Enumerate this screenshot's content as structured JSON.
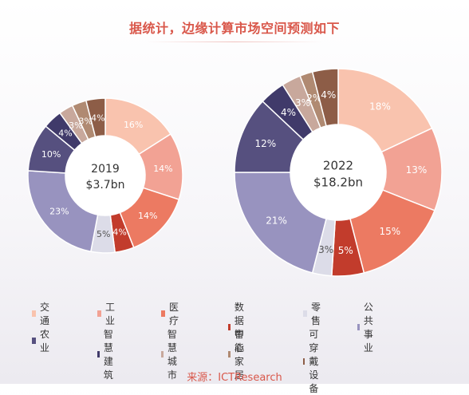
{
  "title": "据统计，边缘计算市场空间预测如下",
  "source": "来源：ICTResearch",
  "legend": [
    {
      "label": "交通",
      "color": "#f9c3ae"
    },
    {
      "label": "工业",
      "color": "#f2a294"
    },
    {
      "label": "医疗",
      "color": "#ec7a62"
    },
    {
      "label": "数据中心",
      "color": "#c23c2c"
    },
    {
      "label": "零售",
      "color": "#dcdce8"
    },
    {
      "label": "公共事业",
      "color": "#9893bf"
    },
    {
      "label": "农业",
      "color": "#56507f"
    },
    {
      "label": "智慧建筑",
      "color": "#403a6a"
    },
    {
      "label": "智慧城市",
      "color": "#c8a89c"
    },
    {
      "label": "智能家居",
      "color": "#b08a72"
    },
    {
      "label": "可穿戴设备",
      "color": "#8d5d47"
    }
  ],
  "chart_data": [
    {
      "type": "pie",
      "center_year": "2019",
      "center_value": "$3.7bn",
      "categories": [
        "交通",
        "工业",
        "医疗",
        "数据中心",
        "零售",
        "公共事业",
        "农业",
        "智慧建筑",
        "智慧城市",
        "智能家居",
        "可穿戴设备"
      ],
      "values": [
        16,
        14,
        14,
        4,
        5,
        23,
        10,
        4,
        3,
        3,
        4
      ],
      "labels": [
        "16%",
        "14%",
        "14%",
        "4%",
        "5%",
        "23%",
        "10%",
        "4%",
        "3%",
        "3%",
        "4%"
      ]
    },
    {
      "type": "pie",
      "center_year": "2022",
      "center_value": "$18.2bn",
      "categories": [
        "交通",
        "工业",
        "医疗",
        "数据中心",
        "零售",
        "公共事业",
        "农业",
        "智慧建筑",
        "智慧城市",
        "智能家居",
        "可穿戴设备"
      ],
      "values": [
        18,
        13,
        15,
        5,
        3,
        21,
        12,
        4,
        3,
        2,
        4
      ],
      "labels": [
        "18%",
        "13%",
        "15%",
        "5%",
        "3%",
        "21%",
        "12%",
        "4%",
        "3%",
        "2%",
        "4%"
      ]
    }
  ]
}
